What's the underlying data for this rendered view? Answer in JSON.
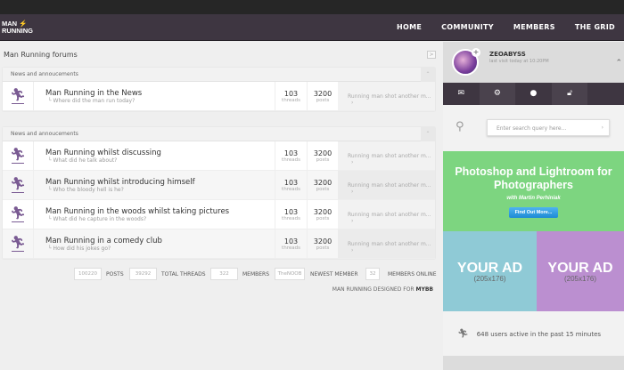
{
  "nav": {
    "logo": "MAN RUNNING",
    "links": [
      "HOME",
      "COMMUNITY",
      "MEMBERS",
      "THE GRID"
    ]
  },
  "breadcrumb": "Man Running forums",
  "categories": [
    {
      "title": "News and annoucements",
      "forums": [
        {
          "title": "Man Running in the News",
          "sub": "Where did the man run today?",
          "threads": "103",
          "threads_label": "threads",
          "posts": "3200",
          "posts_label": "posts",
          "last": "Running man shot another m..."
        }
      ]
    },
    {
      "title": "News and annoucements",
      "forums": [
        {
          "title": "Man Running whilst discussing",
          "sub": "What did he talk about?",
          "threads": "103",
          "threads_label": "threads",
          "posts": "3200",
          "posts_label": "posts",
          "last": "Running man shot another m..."
        },
        {
          "title": "Man Running whilst introducing himself",
          "sub": "Who the bloody hell is he?",
          "threads": "103",
          "threads_label": "threads",
          "posts": "3200",
          "posts_label": "posts",
          "last": "Running man shot another m..."
        },
        {
          "title": "Man Running in the woods whilst taking pictures",
          "sub": "What did he capture in the woods?",
          "threads": "103",
          "threads_label": "threads",
          "posts": "3200",
          "posts_label": "posts",
          "last": "Running man shot another m..."
        },
        {
          "title": "Man Running in a comedy club",
          "sub": "How did his jokes go?",
          "threads": "103",
          "threads_label": "threads",
          "posts": "3200",
          "posts_label": "posts",
          "last": "Running man shot another m..."
        }
      ]
    }
  ],
  "stats": {
    "posts": "100220",
    "posts_label": "POSTS",
    "threads": "39292",
    "threads_label": "TOTAL THREADS",
    "members": "322",
    "members_label": "MEMBERS",
    "newest": "TheNOOB",
    "newest_label": "NEWEST MEMBER",
    "online": "32",
    "online_label": "MEMBERS ONLINE"
  },
  "credit": {
    "text": "MAN RUNNING DESIGNED FOR",
    "brand": "MYBB"
  },
  "profile": {
    "username": "ZEOABYSS",
    "last_visit": "last visit today at 10:20PM"
  },
  "search": {
    "placeholder": "Enter search query here..."
  },
  "promo": {
    "title": "Photoshop and Lightroom for Photographers",
    "subtitle": "with Martin Perhiniak",
    "button": "Find Out More...",
    "color": "#7dd580"
  },
  "ads": [
    {
      "label": "YOUR AD",
      "size": "(205x176)",
      "color": "#8fcad6"
    },
    {
      "label": "YOUR AD",
      "size": "(205x176)",
      "color": "#bb8fd0"
    }
  ],
  "active_users": "648 users active in the past 15 minutes"
}
